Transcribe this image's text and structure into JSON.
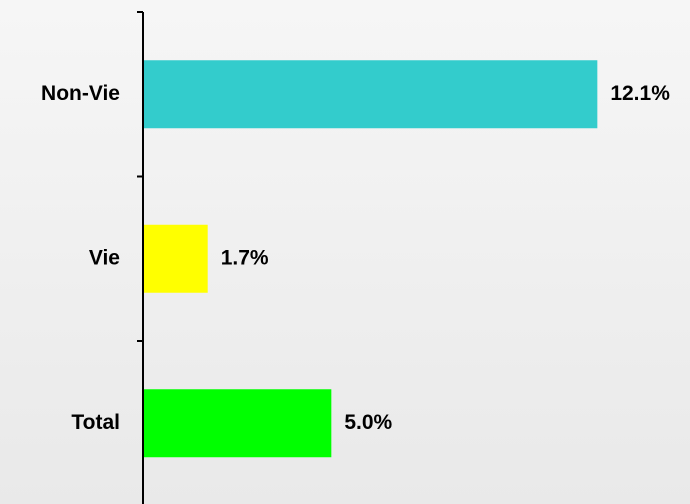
{
  "chart_data": {
    "type": "bar",
    "orientation": "horizontal",
    "categories": [
      "Non-Vie",
      "Vie",
      "Total"
    ],
    "values": [
      12.1,
      1.7,
      5.0
    ],
    "value_labels": [
      "12.1%",
      "1.7%",
      "5.0%"
    ],
    "colors": [
      "#33cccc",
      "#ffff00",
      "#00ff00"
    ],
    "unit": "%",
    "xlim": [
      0,
      14.6
    ],
    "title": "",
    "xlabel": "",
    "ylabel": "",
    "grid": false,
    "legend": "none"
  }
}
